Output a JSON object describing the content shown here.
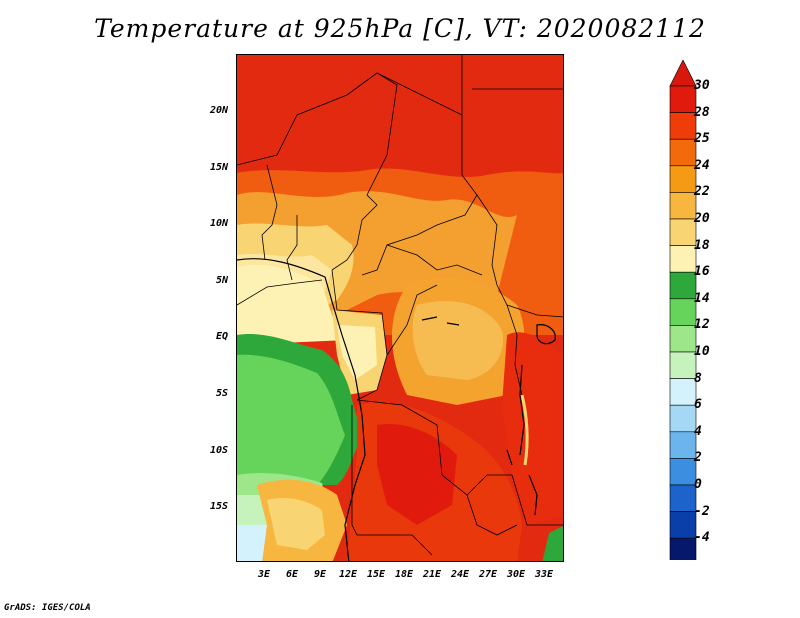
{
  "title": "Temperature at 925hPa [C], VT: 2020082112",
  "footer": "GrADS: IGES/COLA",
  "map": {
    "lat_labels": [
      "20N",
      "15N",
      "10N",
      "5N",
      "EQ",
      "5S",
      "10S",
      "15S"
    ],
    "lon_labels": [
      "3E",
      "6E",
      "9E",
      "12E",
      "15E",
      "18E",
      "21E",
      "24E",
      "27E",
      "30E",
      "33E"
    ]
  },
  "colorbar": {
    "labels": [
      "30",
      "28",
      "25",
      "24",
      "22",
      "20",
      "18",
      "16",
      "14",
      "12",
      "10",
      "8",
      "6",
      "4",
      "2",
      "0",
      "-2",
      "-4"
    ],
    "colors": [
      "#e01b0e",
      "#f03c0a",
      "#f26a0c",
      "#f49a14",
      "#f6b640",
      "#f9d472",
      "#fdf2b4",
      "#2ea83a",
      "#66d35a",
      "#9ee68a",
      "#c6f2bc",
      "#d4f2fc",
      "#a4d8f4",
      "#6cb4ec",
      "#3c8ee0",
      "#1c64cc",
      "#0a3ea8",
      "#06186c"
    ],
    "top_triangle_color": "#d8180c",
    "bottom_triangle_color": "#e6ecfc"
  }
}
